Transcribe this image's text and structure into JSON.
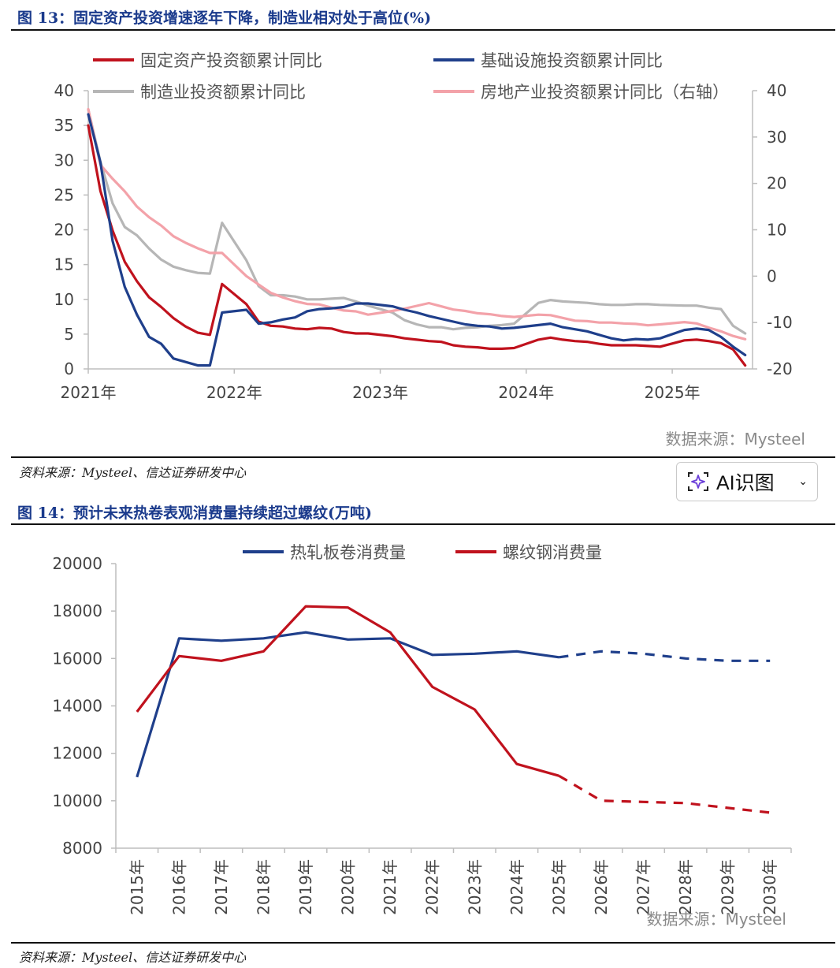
{
  "chart_data": [
    {
      "type": "line",
      "title": "图 13：固定资产投资增速逐年下降，制造业相对处于高位(%)",
      "source_inner": "数据来源：Mysteel",
      "source_footer": "资料来源：Mysteel、信达证券研发中心",
      "x_tick_labels": [
        "2021年",
        "2022年",
        "2023年",
        "2024年",
        "2025年"
      ],
      "x_range": [
        2021,
        2025.55
      ],
      "ylim_left": [
        0,
        40
      ],
      "yticks_left": [
        0,
        5,
        10,
        15,
        20,
        25,
        30,
        35,
        40
      ],
      "ylim_right": [
        -20,
        40
      ],
      "yticks_right": [
        -20,
        -10,
        0,
        10,
        20,
        30,
        40
      ],
      "legend": [
        "固定资产投资额累计同比",
        "基础设施投资额累计同比",
        "制造业投资额累计同比",
        "房地产业投资额累计同比（右轴）"
      ],
      "series": [
        {
          "name": "固定资产投资额累计同比",
          "color": "#c0121d",
          "axis": "left",
          "x": [
            2021.0,
            2021.0833,
            2021.1667,
            2021.25,
            2021.3333,
            2021.4167,
            2021.5,
            2021.5833,
            2021.6667,
            2021.75,
            2021.8333,
            2021.9167,
            2022.0833,
            2022.1667,
            2022.25,
            2022.3333,
            2022.4167,
            2022.5,
            2022.5833,
            2022.6667,
            2022.75,
            2022.8333,
            2022.9167,
            2023.0833,
            2023.1667,
            2023.25,
            2023.3333,
            2023.4167,
            2023.5,
            2023.5833,
            2023.6667,
            2023.75,
            2023.8333,
            2023.9167,
            2024.0833,
            2024.1667,
            2024.25,
            2024.3333,
            2024.4167,
            2024.5,
            2024.5833,
            2024.6667,
            2024.75,
            2024.8333,
            2024.9167,
            2025.0833,
            2025.1667,
            2025.25,
            2025.3333,
            2025.4167,
            2025.5
          ],
          "y": [
            35.0,
            25.6,
            19.9,
            15.4,
            12.6,
            10.3,
            8.9,
            7.3,
            6.1,
            5.2,
            4.9,
            12.2,
            9.3,
            6.8,
            6.2,
            6.1,
            5.8,
            5.7,
            5.9,
            5.8,
            5.3,
            5.1,
            5.1,
            4.7,
            4.4,
            4.2,
            4.0,
            3.9,
            3.4,
            3.2,
            3.1,
            2.9,
            2.9,
            3.0,
            4.2,
            4.5,
            4.2,
            4.0,
            3.9,
            3.6,
            3.4,
            3.4,
            3.4,
            3.3,
            3.2,
            4.1,
            4.2,
            4.0,
            3.7,
            2.8,
            0.5
          ]
        },
        {
          "name": "基础设施投资额累计同比",
          "color": "#1f3f8b",
          "axis": "left",
          "x": [
            2021.0,
            2021.0833,
            2021.1667,
            2021.25,
            2021.3333,
            2021.4167,
            2021.5,
            2021.5833,
            2021.6667,
            2021.75,
            2021.8333,
            2021.9167,
            2022.0833,
            2022.1667,
            2022.25,
            2022.3333,
            2022.4167,
            2022.5,
            2022.5833,
            2022.6667,
            2022.75,
            2022.8333,
            2022.9167,
            2023.0833,
            2023.1667,
            2023.25,
            2023.3333,
            2023.4167,
            2023.5,
            2023.5833,
            2023.6667,
            2023.75,
            2023.8333,
            2023.9167,
            2024.0833,
            2024.1667,
            2024.25,
            2024.3333,
            2024.4167,
            2024.5,
            2024.5833,
            2024.6667,
            2024.75,
            2024.8333,
            2024.9167,
            2025.0833,
            2025.1667,
            2025.25,
            2025.3333,
            2025.4167,
            2025.5
          ],
          "y": [
            36.6,
            29.7,
            18.4,
            11.8,
            7.8,
            4.6,
            3.6,
            1.5,
            1.0,
            0.5,
            0.5,
            8.1,
            8.5,
            6.5,
            6.7,
            7.1,
            7.4,
            8.3,
            8.6,
            8.7,
            8.9,
            9.4,
            9.4,
            9.0,
            8.5,
            8.1,
            7.6,
            7.2,
            6.8,
            6.4,
            6.2,
            6.1,
            5.8,
            5.9,
            6.3,
            6.5,
            6.0,
            5.7,
            5.4,
            4.9,
            4.4,
            4.1,
            4.3,
            4.2,
            4.4,
            5.6,
            5.8,
            5.6,
            4.6,
            3.2,
            2.0
          ]
        },
        {
          "name": "制造业投资额累计同比",
          "color": "#b6b6b6",
          "axis": "left",
          "x": [
            2021.0,
            2021.0833,
            2021.1667,
            2021.25,
            2021.3333,
            2021.4167,
            2021.5,
            2021.5833,
            2021.6667,
            2021.75,
            2021.8333,
            2021.9167,
            2022.0833,
            2022.1667,
            2022.25,
            2022.3333,
            2022.4167,
            2022.5,
            2022.5833,
            2022.6667,
            2022.75,
            2022.8333,
            2022.9167,
            2023.0833,
            2023.1667,
            2023.25,
            2023.3333,
            2023.4167,
            2023.5,
            2023.5833,
            2023.6667,
            2023.75,
            2023.8333,
            2023.9167,
            2024.0833,
            2024.1667,
            2024.25,
            2024.3333,
            2024.4167,
            2024.5,
            2024.5833,
            2024.6667,
            2024.75,
            2024.8333,
            2024.9167,
            2025.0833,
            2025.1667,
            2025.25,
            2025.3333,
            2025.4167,
            2025.5
          ],
          "y": [
            37.3,
            29.8,
            23.8,
            20.4,
            19.2,
            17.3,
            15.7,
            14.7,
            14.2,
            13.8,
            13.7,
            21.0,
            15.6,
            11.9,
            10.6,
            10.6,
            10.4,
            10.0,
            10.0,
            10.1,
            10.2,
            9.7,
            9.1,
            8.1,
            7.0,
            6.4,
            6.0,
            6.0,
            5.7,
            5.9,
            6.0,
            6.2,
            6.3,
            6.5,
            9.5,
            9.9,
            9.7,
            9.6,
            9.5,
            9.3,
            9.2,
            9.2,
            9.3,
            9.3,
            9.2,
            9.1,
            9.1,
            8.8,
            8.6,
            6.2,
            5.1
          ]
        },
        {
          "name": "房地产业投资额累计同比（右轴）",
          "color": "#f3a2a9",
          "axis": "right",
          "x": [
            2021.0,
            2021.0833,
            2021.1667,
            2021.25,
            2021.3333,
            2021.4167,
            2021.5,
            2021.5833,
            2021.6667,
            2021.75,
            2021.8333,
            2021.9167,
            2022.0833,
            2022.1667,
            2022.25,
            2022.3333,
            2022.4167,
            2022.5,
            2022.5833,
            2022.6667,
            2022.75,
            2022.8333,
            2022.9167,
            2023.0833,
            2023.1667,
            2023.25,
            2023.3333,
            2023.4167,
            2023.5,
            2023.5833,
            2023.6667,
            2023.75,
            2023.8333,
            2023.9167,
            2024.0833,
            2024.1667,
            2024.25,
            2024.3333,
            2024.4167,
            2024.5,
            2024.5833,
            2024.6667,
            2024.75,
            2024.8333,
            2024.9167,
            2025.0833,
            2025.1667,
            2025.25,
            2025.3333,
            2025.4167,
            2025.5
          ],
          "y": [
            36.0,
            24.0,
            21.0,
            18.3,
            15.0,
            12.7,
            10.9,
            8.6,
            7.2,
            6.0,
            5.0,
            5.0,
            0.0,
            -1.8,
            -3.6,
            -4.6,
            -5.4,
            -6.0,
            -6.1,
            -6.8,
            -7.4,
            -7.6,
            -8.3,
            -7.5,
            -7.0,
            -6.4,
            -5.8,
            -6.5,
            -7.2,
            -7.5,
            -8.0,
            -8.2,
            -8.6,
            -8.8,
            -8.3,
            -8.4,
            -9.0,
            -9.6,
            -9.7,
            -10.0,
            -10.0,
            -10.2,
            -10.3,
            -10.6,
            -10.4,
            -9.9,
            -10.2,
            -11.1,
            -11.9,
            -12.9,
            -13.6
          ]
        }
      ]
    },
    {
      "type": "line",
      "title": "图 14：预计未来热卷表观消费量持续超过螺纹(万吨)",
      "source_inner": "数据来源：Mysteel",
      "source_footer": "资料来源：Mysteel、信达证券研发中心",
      "categories": [
        "2015年",
        "2016年",
        "2017年",
        "2018年",
        "2019年",
        "2020年",
        "2021年",
        "2022年",
        "2023年",
        "2024年",
        "2025年",
        "2026年",
        "2027年",
        "2028年",
        "2029年",
        "2030年"
      ],
      "ylim": [
        8000,
        20000
      ],
      "yticks": [
        8000,
        10000,
        12000,
        14000,
        16000,
        18000,
        20000
      ],
      "actual_through": "2025年",
      "legend": [
        "热轧板卷消费量",
        "螺纹钢消费量"
      ],
      "series": [
        {
          "name": "热轧板卷消费量",
          "color": "#1f3f8b",
          "values": [
            11000,
            16850,
            16750,
            16850,
            17100,
            16800,
            16850,
            16150,
            16200,
            16300,
            16050,
            16300,
            16200,
            16000,
            15900,
            15900
          ]
        },
        {
          "name": "螺纹钢消费量",
          "color": "#c0121d",
          "values": [
            13750,
            16100,
            15900,
            16300,
            18200,
            18150,
            17100,
            14800,
            13850,
            11550,
            11050,
            10000,
            9950,
            9900,
            9700,
            9500
          ]
        }
      ]
    }
  ],
  "ai_button": {
    "label": "AI识图",
    "chevron": "⌄"
  }
}
